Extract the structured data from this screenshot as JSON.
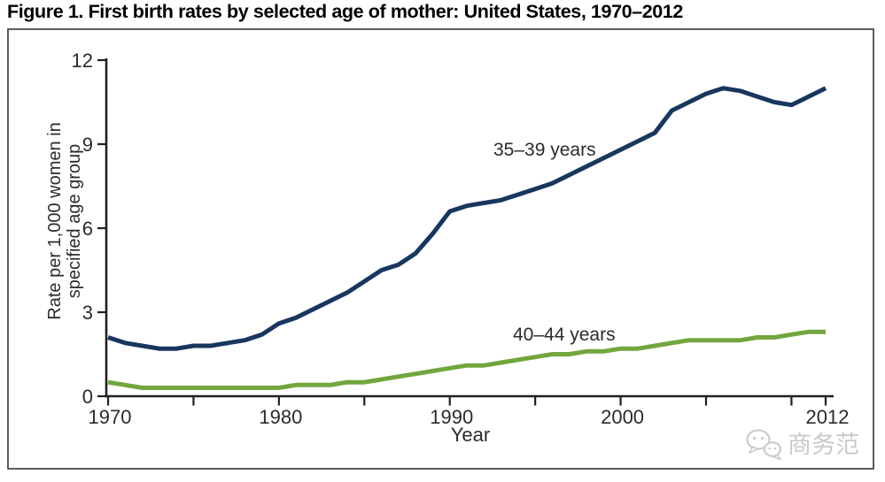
{
  "figure": {
    "title": "Figure 1. First birth rates by selected age of mother: United States, 1970–2012"
  },
  "watermark": {
    "text": "商务范",
    "color": "#c9c9c9"
  },
  "chart_data": {
    "type": "line",
    "title": "First birth rates by selected age of mother: United States, 1970–2012",
    "xlabel": "Year",
    "ylabel": "Rate per 1,000 women in specified age group",
    "ylabel_lines": [
      "Rate per 1,000 women in",
      "specified age group"
    ],
    "xlim": [
      1970,
      2012
    ],
    "ylim": [
      0,
      12
    ],
    "y_ticks": [
      0,
      3,
      6,
      9,
      12
    ],
    "x_ticks": [
      1970,
      1975,
      1980,
      1985,
      1990,
      1995,
      2000,
      2005,
      2010,
      2012
    ],
    "x_tick_labels": [
      1970,
      1980,
      1990,
      2000,
      2012
    ],
    "grid": false,
    "legend_position": "inline-labels",
    "axis_color": "#231f20",
    "x": [
      1970,
      1971,
      1972,
      1973,
      1974,
      1975,
      1976,
      1977,
      1978,
      1979,
      1980,
      1981,
      1982,
      1983,
      1984,
      1985,
      1986,
      1987,
      1988,
      1989,
      1990,
      1991,
      1992,
      1993,
      1994,
      1995,
      1996,
      1997,
      1998,
      1999,
      2000,
      2001,
      2002,
      2003,
      2004,
      2005,
      2006,
      2007,
      2008,
      2009,
      2010,
      2011,
      2012
    ],
    "series": [
      {
        "name": "35–39 years",
        "color": "#18365e",
        "values": [
          2.1,
          1.9,
          1.8,
          1.7,
          1.7,
          1.8,
          1.8,
          1.9,
          2.0,
          2.2,
          2.6,
          2.8,
          3.1,
          3.4,
          3.7,
          4.1,
          4.5,
          4.7,
          5.1,
          5.8,
          6.6,
          6.8,
          6.9,
          7.0,
          7.2,
          7.4,
          7.6,
          7.9,
          8.2,
          8.5,
          8.8,
          9.1,
          9.4,
          10.2,
          10.5,
          10.8,
          11.0,
          10.9,
          10.7,
          10.5,
          10.4,
          10.7,
          11.0
        ]
      },
      {
        "name": "40–44 years",
        "color": "#73a63d",
        "values": [
          0.5,
          0.4,
          0.3,
          0.3,
          0.3,
          0.3,
          0.3,
          0.3,
          0.3,
          0.3,
          0.3,
          0.4,
          0.4,
          0.4,
          0.5,
          0.5,
          0.6,
          0.7,
          0.8,
          0.9,
          1.0,
          1.1,
          1.1,
          1.2,
          1.3,
          1.4,
          1.5,
          1.5,
          1.6,
          1.6,
          1.7,
          1.7,
          1.8,
          1.9,
          2.0,
          2.0,
          2.0,
          2.0,
          2.1,
          2.1,
          2.2,
          2.3,
          2.3
        ]
      }
    ]
  }
}
